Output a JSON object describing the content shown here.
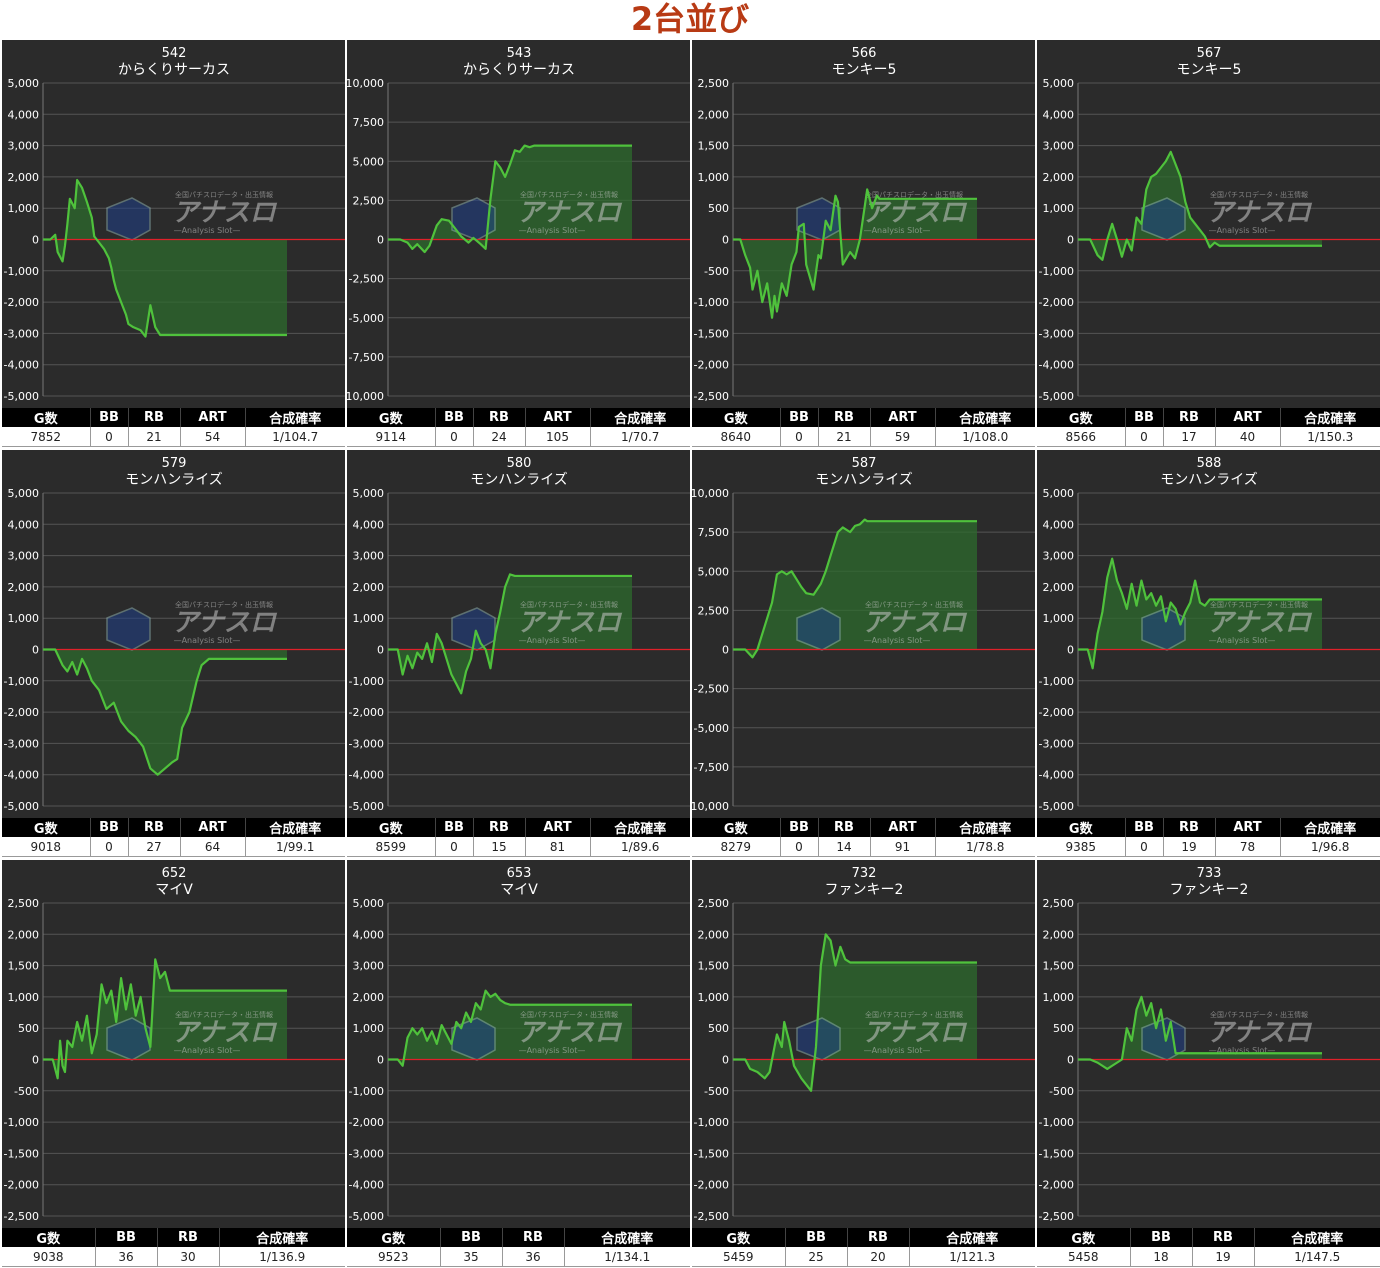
{
  "page": {
    "title": "2台並び"
  },
  "stat_headers_full": [
    "G数",
    "BB",
    "RB",
    "ART",
    "合成確率"
  ],
  "stat_headers_short": [
    "G数",
    "BB",
    "RB",
    "合成確率"
  ],
  "colors": {
    "background": "#2b2b2b",
    "line": "#4fc23c",
    "fill": "#2e6b2e",
    "zero_line": "#e0202a",
    "grid": "#555555",
    "title_color": "#b83a14"
  },
  "watermark": {
    "brand": "アナスロ",
    "tagline": "全国パチスロデータ・出玉情報",
    "sub": "—Analysis Slot—",
    "icon": "hexagon-logo-icon"
  },
  "chart_data": [
    {
      "type": "line",
      "number": "542",
      "machine": "からくりサーカス",
      "ylim": [
        -5000,
        5000
      ],
      "yticks": [
        "5,000",
        "4,000",
        "3,000",
        "2,000",
        "1,000",
        "0",
        "-1,000",
        "-2,000",
        "-3,000",
        "-4,000",
        "-5,000"
      ],
      "x": [
        0,
        3,
        5,
        6,
        8,
        9,
        10,
        11,
        13,
        14,
        16,
        18,
        20,
        21,
        23,
        25,
        27,
        28,
        29,
        30,
        32,
        34,
        35,
        37,
        40,
        42,
        44,
        46,
        48,
        50,
        53,
        56,
        58,
        60,
        62,
        64,
        66,
        68,
        70,
        75,
        80,
        85,
        90,
        95,
        100
      ],
      "y": [
        0,
        0,
        150,
        -400,
        -700,
        -200,
        500,
        1300,
        1000,
        1900,
        1650,
        1200,
        700,
        100,
        -100,
        -300,
        -600,
        -900,
        -1300,
        -1600,
        -2000,
        -2400,
        -2700,
        -2800,
        -2900,
        -3100,
        -2100,
        -2800,
        -3050,
        -3050,
        -3050,
        -3050,
        -3050,
        -3050,
        -3050,
        -3050,
        -3050,
        -3050,
        -3050,
        -3050,
        -3050,
        -3050,
        -3050,
        -3050,
        -3050
      ],
      "stats": {
        "g": "7852",
        "bb": "0",
        "rb": "21",
        "art": "54",
        "prob": "1/104.7"
      }
    },
    {
      "type": "line",
      "number": "543",
      "machine": "からくりサーカス",
      "ylim": [
        -10000,
        10000
      ],
      "yticks": [
        "10,000",
        "7,500",
        "5,000",
        "2,500",
        "0",
        "-2,500",
        "-5,000",
        "-7,500",
        "-10,000"
      ],
      "x": [
        0,
        5,
        8,
        10,
        12,
        15,
        17,
        20,
        22,
        25,
        27,
        30,
        33,
        35,
        38,
        40,
        42,
        44,
        46,
        48,
        50,
        52,
        54,
        56,
        58,
        60,
        63,
        65,
        70,
        75,
        80,
        85,
        90,
        95,
        100
      ],
      "y": [
        0,
        0,
        -200,
        -600,
        -300,
        -800,
        -400,
        900,
        1300,
        1200,
        800,
        200,
        -200,
        100,
        -300,
        -600,
        2600,
        5000,
        4600,
        4000,
        4800,
        5700,
        5600,
        6000,
        5900,
        6000,
        6000,
        6000,
        6000,
        6000,
        6000,
        6000,
        6000,
        6000,
        6000
      ],
      "stats": {
        "g": "9114",
        "bb": "0",
        "rb": "24",
        "art": "105",
        "prob": "1/70.7"
      }
    },
    {
      "type": "line",
      "number": "566",
      "machine": "モンキー5",
      "ylim": [
        -2500,
        2500
      ],
      "yticks": [
        "2,500",
        "2,000",
        "1,500",
        "1,000",
        "500",
        "0",
        "-500",
        "-1,000",
        "-1,500",
        "-2,000",
        "-2,500"
      ],
      "x": [
        0,
        3,
        5,
        7,
        8,
        10,
        12,
        14,
        16,
        17,
        18,
        20,
        22,
        24,
        26,
        27,
        29,
        30,
        33,
        35,
        36,
        38,
        40,
        42,
        43,
        45,
        48,
        50,
        52,
        55,
        57,
        59,
        60,
        62,
        63,
        65,
        66,
        68,
        70,
        75,
        80,
        85,
        90,
        95,
        100
      ],
      "y": [
        0,
        0,
        -250,
        -450,
        -800,
        -500,
        -1000,
        -700,
        -1250,
        -900,
        -1150,
        -700,
        -900,
        -400,
        -200,
        200,
        250,
        -400,
        -800,
        -250,
        -300,
        300,
        150,
        700,
        600,
        -400,
        -200,
        -300,
        0,
        800,
        500,
        700,
        650,
        650,
        650,
        650,
        650,
        650,
        650,
        650,
        650,
        650,
        650,
        650,
        650
      ],
      "stats": {
        "g": "8640",
        "bb": "0",
        "rb": "21",
        "art": "59",
        "prob": "1/108.0"
      }
    },
    {
      "type": "line",
      "number": "567",
      "machine": "モンキー5",
      "ylim": [
        -5000,
        5000
      ],
      "yticks": [
        "5,000",
        "4,000",
        "3,000",
        "2,000",
        "1,000",
        "0",
        "-1,000",
        "-2,000",
        "-3,000",
        "-4,000",
        "-5,000"
      ],
      "x": [
        0,
        5,
        8,
        10,
        12,
        14,
        16,
        18,
        20,
        22,
        24,
        26,
        28,
        30,
        32,
        34,
        36,
        38,
        40,
        42,
        44,
        46,
        48,
        50,
        52,
        54,
        56,
        58,
        60,
        62,
        64,
        66,
        68,
        70,
        75,
        80,
        85,
        90,
        95,
        100
      ],
      "y": [
        0,
        0,
        -500,
        -650,
        0,
        500,
        0,
        -550,
        0,
        -350,
        700,
        500,
        1600,
        2000,
        2100,
        2300,
        2500,
        2800,
        2400,
        2000,
        1200,
        700,
        500,
        300,
        100,
        -250,
        -100,
        -200,
        -200,
        -200,
        -200,
        -200,
        -200,
        -200,
        -200,
        -200,
        -200,
        -200,
        -200,
        -200
      ],
      "stats": {
        "g": "8566",
        "bb": "0",
        "rb": "17",
        "art": "40",
        "prob": "1/150.3"
      }
    },
    {
      "type": "line",
      "number": "579",
      "machine": "モンハンライズ",
      "ylim": [
        -5000,
        5000
      ],
      "yticks": [
        "5,000",
        "4,000",
        "3,000",
        "2,000",
        "1,000",
        "0",
        "-1,000",
        "-2,000",
        "-3,000",
        "-4,000",
        "-5,000"
      ],
      "x": [
        0,
        5,
        8,
        10,
        12,
        14,
        16,
        18,
        20,
        23,
        26,
        29,
        32,
        35,
        38,
        41,
        44,
        47,
        50,
        53,
        55,
        57,
        60,
        63,
        65,
        68,
        71,
        74,
        77,
        80,
        82,
        84,
        86,
        88,
        90,
        92,
        94,
        96,
        98,
        100
      ],
      "y": [
        0,
        0,
        -500,
        -700,
        -400,
        -800,
        -300,
        -600,
        -1000,
        -1300,
        -1900,
        -1700,
        -2300,
        -2600,
        -2800,
        -3100,
        -3800,
        -4000,
        -3800,
        -3600,
        -3500,
        -2500,
        -2000,
        -1000,
        -500,
        -300,
        -300,
        -300,
        -300,
        -300,
        -300,
        -300,
        -300,
        -300,
        -300,
        -300,
        -300,
        -300,
        -300,
        -300
      ],
      "stats": {
        "g": "9018",
        "bb": "0",
        "rb": "27",
        "art": "64",
        "prob": "1/99.1"
      }
    },
    {
      "type": "line",
      "number": "580",
      "machine": "モンハンライズ",
      "ylim": [
        -5000,
        5000
      ],
      "yticks": [
        "5,000",
        "4,000",
        "3,000",
        "2,000",
        "1,000",
        "0",
        "-1,000",
        "-2,000",
        "-3,000",
        "-4,000",
        "-5,000"
      ],
      "x": [
        0,
        4,
        6,
        8,
        10,
        12,
        14,
        16,
        18,
        20,
        22,
        24,
        26,
        28,
        30,
        32,
        34,
        36,
        38,
        40,
        42,
        44,
        46,
        48,
        50,
        52,
        54,
        56,
        58,
        60,
        65,
        70,
        75,
        80,
        85,
        90,
        95,
        100
      ],
      "y": [
        0,
        0,
        -800,
        -200,
        -600,
        -100,
        -300,
        200,
        -400,
        500,
        200,
        -300,
        -800,
        -1100,
        -1400,
        -700,
        -300,
        600,
        200,
        0,
        -600,
        500,
        1200,
        2000,
        2400,
        2350,
        2350,
        2350,
        2350,
        2350,
        2350,
        2350,
        2350,
        2350,
        2350,
        2350,
        2350,
        2350
      ],
      "stats": {
        "g": "8599",
        "bb": "0",
        "rb": "15",
        "art": "81",
        "prob": "1/89.6"
      }
    },
    {
      "type": "line",
      "number": "587",
      "machine": "モンハンライズ",
      "ylim": [
        -10000,
        10000
      ],
      "yticks": [
        "10,000",
        "7,500",
        "5,000",
        "2,500",
        "0",
        "-2,500",
        "-5,000",
        "-7,500",
        "-10,000"
      ],
      "x": [
        0,
        5,
        8,
        10,
        13,
        16,
        18,
        20,
        22,
        24,
        26,
        28,
        30,
        33,
        36,
        38,
        40,
        43,
        45,
        48,
        50,
        52,
        54,
        55,
        57,
        59,
        60,
        62,
        64,
        66,
        68,
        70,
        75,
        80,
        85,
        90,
        95,
        100
      ],
      "y": [
        0,
        0,
        -500,
        0,
        1500,
        3000,
        4800,
        5000,
        4800,
        5000,
        4500,
        4000,
        3600,
        3500,
        4200,
        5000,
        6000,
        7500,
        7800,
        7500,
        7900,
        8000,
        8300,
        8200,
        8200,
        8200,
        8200,
        8200,
        8200,
        8200,
        8200,
        8200,
        8200,
        8200,
        8200,
        8200,
        8200,
        8200
      ],
      "stats": {
        "g": "8279",
        "bb": "0",
        "rb": "14",
        "art": "91",
        "prob": "1/78.8"
      }
    },
    {
      "type": "line",
      "number": "588",
      "machine": "モンハンライズ",
      "ylim": [
        -5000,
        5000
      ],
      "yticks": [
        "5,000",
        "4,000",
        "3,000",
        "2,000",
        "1,000",
        "0",
        "-1,000",
        "-2,000",
        "-3,000",
        "-4,000",
        "-5,000"
      ],
      "x": [
        0,
        4,
        6,
        8,
        10,
        12,
        14,
        16,
        18,
        20,
        22,
        24,
        26,
        28,
        30,
        32,
        34,
        36,
        38,
        40,
        42,
        44,
        46,
        48,
        50,
        52,
        54,
        56,
        58,
        60,
        62,
        65,
        70,
        75,
        80,
        85,
        90,
        95,
        100
      ],
      "y": [
        0,
        0,
        -600,
        500,
        1200,
        2300,
        2900,
        2200,
        1800,
        1300,
        2100,
        1400,
        2200,
        1600,
        1800,
        1400,
        1700,
        900,
        1500,
        1300,
        800,
        1200,
        1500,
        2200,
        1500,
        1400,
        1600,
        1600,
        1600,
        1600,
        1600,
        1600,
        1600,
        1600,
        1600,
        1600,
        1600,
        1600,
        1600
      ],
      "stats": {
        "g": "9385",
        "bb": "0",
        "rb": "19",
        "art": "78",
        "prob": "1/96.8"
      }
    },
    {
      "type": "line",
      "number": "652",
      "machine": "マイV",
      "ylim": [
        -2500,
        2500
      ],
      "yticks": [
        "2,500",
        "2,000",
        "1,500",
        "1,000",
        "500",
        "0",
        "-500",
        "-1,000",
        "-1,500",
        "-2,000",
        "-2,500"
      ],
      "x": [
        0,
        4,
        6,
        7,
        8,
        9,
        10,
        12,
        14,
        16,
        18,
        20,
        22,
        24,
        26,
        28,
        30,
        32,
        34,
        36,
        38,
        40,
        42,
        44,
        46,
        48,
        50,
        52,
        54,
        56,
        58,
        60,
        62,
        64,
        66,
        68,
        70,
        75,
        80,
        85,
        90,
        95,
        100
      ],
      "y": [
        0,
        0,
        -300,
        300,
        -100,
        -200,
        300,
        200,
        600,
        300,
        700,
        100,
        400,
        1200,
        900,
        1100,
        600,
        1300,
        800,
        1200,
        700,
        1000,
        500,
        200,
        1600,
        1300,
        1400,
        1100,
        1100,
        1100,
        1100,
        1100,
        1100,
        1100,
        1100,
        1100,
        1100,
        1100,
        1100,
        1100,
        1100,
        1100,
        1100
      ],
      "stats": {
        "g": "9038",
        "bb": "36",
        "rb": "30",
        "prob": "1/136.9"
      }
    },
    {
      "type": "line",
      "number": "653",
      "machine": "マイV",
      "ylim": [
        -5000,
        5000
      ],
      "yticks": [
        "5,000",
        "4,000",
        "3,000",
        "2,000",
        "1,000",
        "0",
        "-1,000",
        "-2,000",
        "-3,000",
        "-4,000",
        "-5,000"
      ],
      "x": [
        0,
        4,
        6,
        8,
        10,
        12,
        14,
        16,
        18,
        20,
        22,
        24,
        26,
        28,
        30,
        32,
        34,
        36,
        38,
        40,
        42,
        44,
        46,
        48,
        50,
        52,
        54,
        56,
        58,
        60,
        62,
        65,
        70,
        75,
        80,
        85,
        90,
        95,
        100
      ],
      "y": [
        0,
        0,
        -200,
        700,
        1000,
        800,
        1000,
        600,
        900,
        500,
        1100,
        800,
        500,
        1200,
        1000,
        1500,
        1200,
        1800,
        1600,
        2200,
        2000,
        2100,
        1900,
        1800,
        1750,
        1750,
        1750,
        1750,
        1750,
        1750,
        1750,
        1750,
        1750,
        1750,
        1750,
        1750,
        1750,
        1750,
        1750
      ],
      "stats": {
        "g": "9523",
        "bb": "35",
        "rb": "36",
        "prob": "1/134.1"
      }
    },
    {
      "type": "line",
      "number": "732",
      "machine": "ファンキー2",
      "ylim": [
        -2500,
        2500
      ],
      "yticks": [
        "2,500",
        "2,000",
        "1,500",
        "1,000",
        "500",
        "0",
        "-500",
        "-1,000",
        "-1,500",
        "-2,000",
        "-2,500"
      ],
      "x": [
        0,
        5,
        7,
        10,
        13,
        15,
        18,
        20,
        21,
        23,
        25,
        28,
        30,
        32,
        34,
        36,
        38,
        40,
        42,
        44,
        46,
        48,
        50,
        52,
        54,
        56,
        58,
        60,
        62,
        64,
        66,
        68,
        70,
        75,
        80,
        85,
        90,
        95,
        100
      ],
      "y": [
        0,
        0,
        -150,
        -200,
        -300,
        -200,
        400,
        200,
        600,
        300,
        -100,
        -300,
        -400,
        -500,
        200,
        1500,
        2000,
        1900,
        1500,
        1800,
        1600,
        1550,
        1550,
        1550,
        1550,
        1550,
        1550,
        1550,
        1550,
        1550,
        1550,
        1550,
        1550,
        1550,
        1550,
        1550,
        1550,
        1550,
        1550
      ],
      "stats": {
        "g": "5459",
        "bb": "25",
        "rb": "20",
        "prob": "1/121.3"
      }
    },
    {
      "type": "line",
      "number": "733",
      "machine": "ファンキー2",
      "ylim": [
        -2500,
        2500
      ],
      "yticks": [
        "2,500",
        "2,000",
        "1,500",
        "1,000",
        "500",
        "0",
        "-500",
        "-1,000",
        "-1,500",
        "-2,000",
        "-2,500"
      ],
      "x": [
        0,
        5,
        8,
        10,
        12,
        14,
        16,
        18,
        20,
        22,
        24,
        26,
        28,
        30,
        32,
        34,
        36,
        38,
        40,
        42,
        44,
        46,
        48,
        50,
        52,
        54,
        56,
        58,
        60,
        62,
        64,
        66,
        68,
        70,
        75,
        80,
        85,
        90,
        95,
        100
      ],
      "y": [
        0,
        0,
        -50,
        -100,
        -150,
        -100,
        -50,
        0,
        500,
        300,
        800,
        1000,
        700,
        900,
        500,
        800,
        300,
        600,
        100,
        100,
        100,
        100,
        100,
        100,
        100,
        100,
        100,
        100,
        100,
        100,
        100,
        100,
        100,
        100,
        100,
        100,
        100,
        100,
        100,
        100
      ],
      "stats": {
        "g": "5458",
        "bb": "18",
        "rb": "19",
        "prob": "1/147.5"
      }
    }
  ]
}
